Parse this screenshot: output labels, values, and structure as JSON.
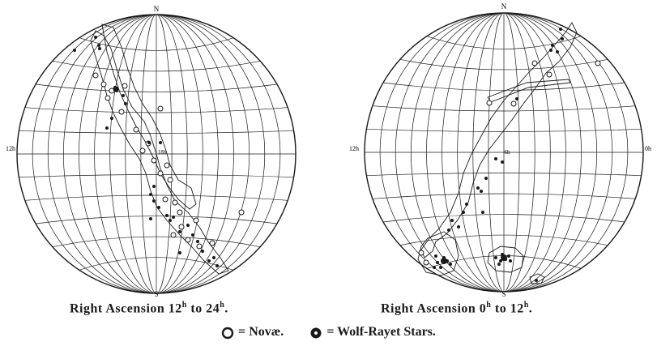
{
  "left_chart": {
    "north_label": "N",
    "south_label": "S",
    "left_edge_label": "12h",
    "center_label": "18h",
    "caption_prefix": "Right Ascension ",
    "caption_a": "12",
    "caption_a_sup": "h",
    "caption_mid": " to ",
    "caption_b": "24",
    "caption_b_sup": "h",
    "caption_suffix": "."
  },
  "right_chart": {
    "north_label": "N",
    "south_label": "S",
    "left_edge_label": "12h",
    "center_label": "6h",
    "right_edge_label": "0h",
    "caption_prefix": "Right Ascension ",
    "caption_a": "0",
    "caption_a_sup": "h",
    "caption_mid": " to ",
    "caption_b": "12",
    "caption_b_sup": "h",
    "caption_suffix": "."
  },
  "legend": {
    "novae_label": "= Novæ.",
    "wolf_rayet_label": "= Wolf-Rayet Stars."
  },
  "colors": {
    "ink": "#1a1a1a",
    "paper": "#ffffff"
  }
}
